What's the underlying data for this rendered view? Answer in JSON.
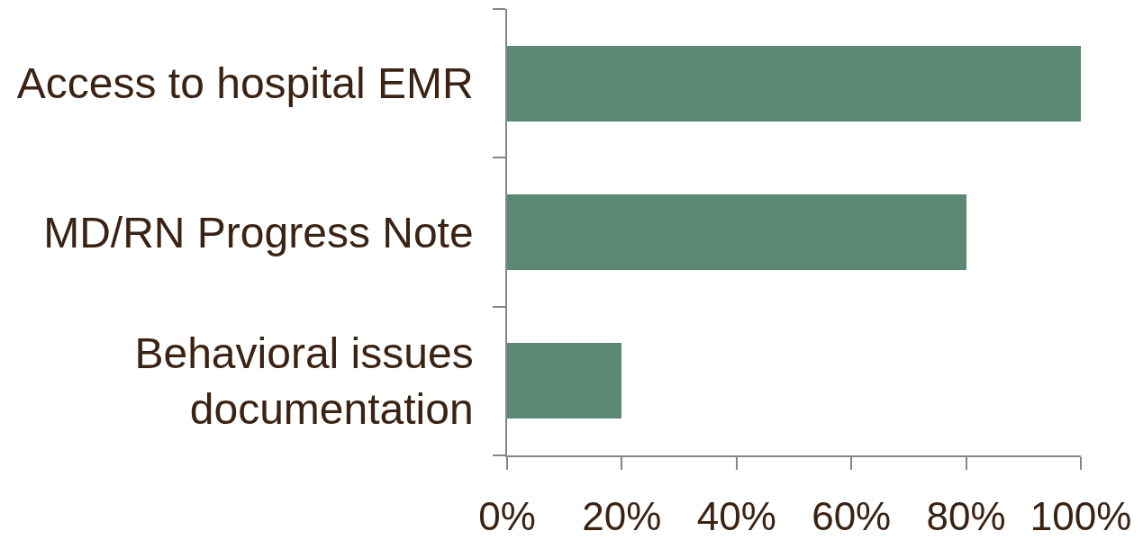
{
  "chart_data": {
    "type": "bar",
    "orientation": "horizontal",
    "categories": [
      "Access to hospital EMR",
      "MD/RN Progress Note",
      "Behavioral issues documentation"
    ],
    "values": [
      100,
      80,
      20
    ],
    "color": "#5b8872",
    "xlim": [
      0,
      100
    ],
    "xticks": [
      {
        "value": 0,
        "label": "0%"
      },
      {
        "value": 20,
        "label": "20%"
      },
      {
        "value": 40,
        "label": "40%"
      },
      {
        "value": 60,
        "label": "60%"
      },
      {
        "value": 80,
        "label": "80%"
      },
      {
        "value": 100,
        "label": "100%"
      }
    ]
  }
}
